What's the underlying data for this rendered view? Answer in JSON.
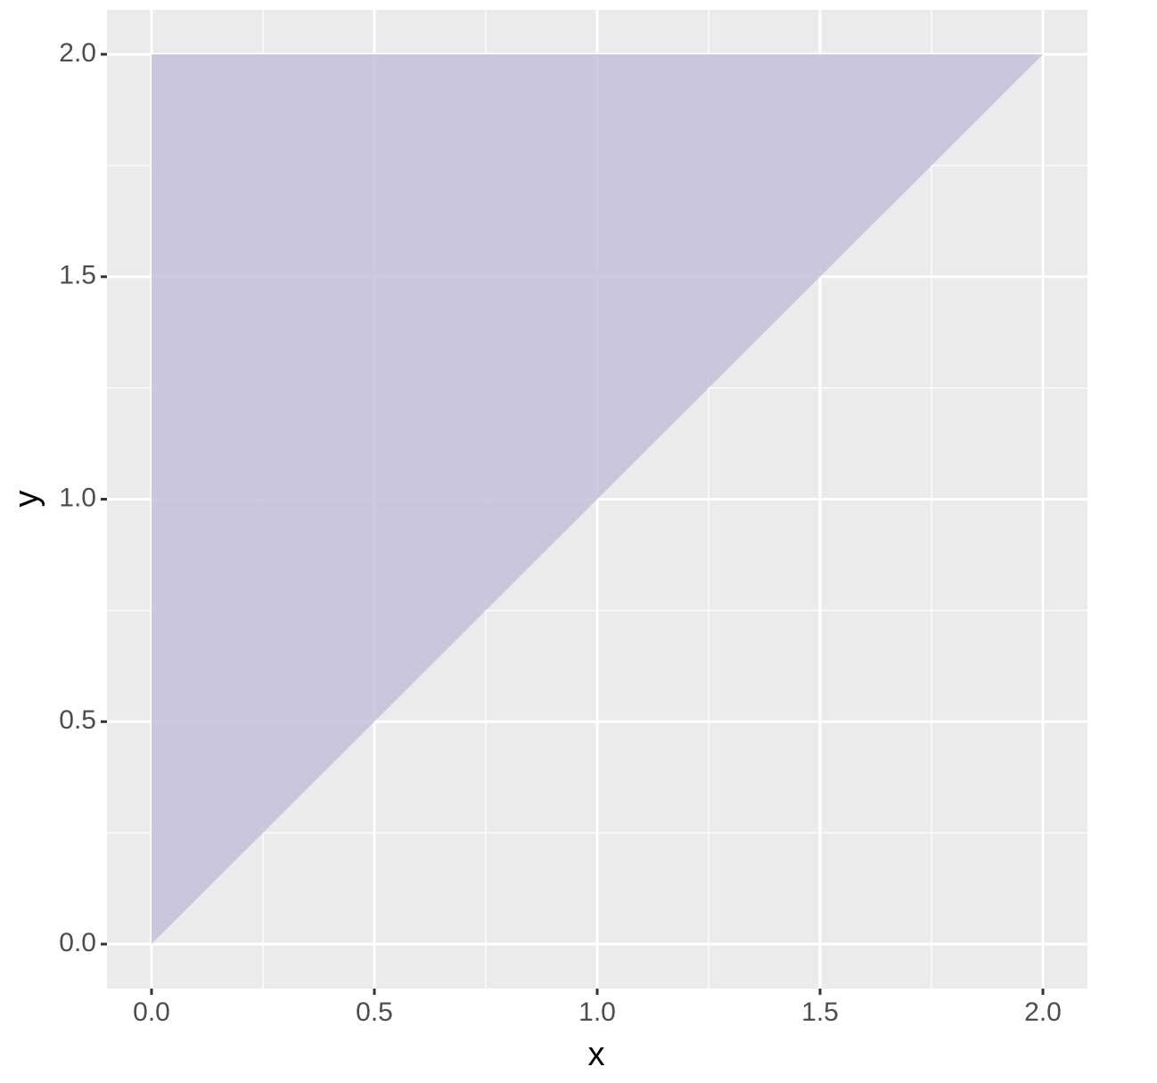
{
  "chart_data": {
    "type": "polygon",
    "x": [
      0,
      0,
      2
    ],
    "y": [
      0,
      2,
      2
    ],
    "color": "#c3c0da",
    "x_label": "x",
    "y_label": "y",
    "xlim": [
      -0.1,
      2.1
    ],
    "ylim": [
      -0.1,
      2.1
    ],
    "xticks": [
      {
        "value": 0,
        "label": "0.0"
      },
      {
        "value": 0.5,
        "label": "0.5"
      },
      {
        "value": 1,
        "label": "1.0"
      },
      {
        "value": 1.5,
        "label": "1.5"
      },
      {
        "value": 2,
        "label": "2.0"
      }
    ],
    "yticks": [
      {
        "value": 0,
        "label": "0.0"
      },
      {
        "value": 0.5,
        "label": "0.5"
      },
      {
        "value": 1,
        "label": "1.0"
      },
      {
        "value": 1.5,
        "label": "1.5"
      },
      {
        "value": 2,
        "label": "2.0"
      }
    ],
    "xminor": [
      0.25,
      0.75,
      1.25,
      1.75
    ],
    "yminor": [
      0.25,
      0.75,
      1.25,
      1.75
    ],
    "grid": true
  }
}
